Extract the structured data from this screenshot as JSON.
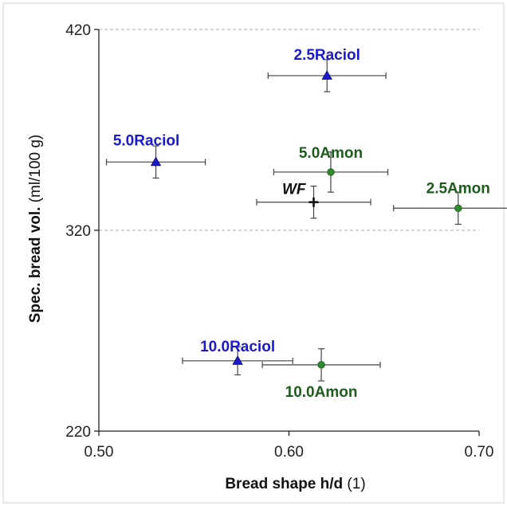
{
  "chart_data": {
    "type": "scatter",
    "xlabel": {
      "bold": "Bread shape h/d",
      "normal": " (1)"
    },
    "ylabel": {
      "bold": "Spec. bread vol.",
      "normal": " (ml/100 g)"
    },
    "xlim": [
      0.5,
      0.7
    ],
    "ylim": [
      220,
      420
    ],
    "x_ticks": [
      "0.50",
      "0.60",
      "0.70"
    ],
    "y_ticks": [
      "220",
      "320",
      "420"
    ],
    "gridlines_y": [
      320,
      420
    ],
    "colors": {
      "raciol": "#1a1acc",
      "amon": "#1e5c1e",
      "wf": "#111111",
      "error_bar": "#444444"
    },
    "points": [
      {
        "label": "2.5Raciol",
        "x": 0.62,
        "y": 397,
        "xerr": 0.031,
        "yerr": 8,
        "marker": "triangle",
        "color": "#1a1acc"
      },
      {
        "label": "5.0Raciol",
        "x": 0.53,
        "y": 354,
        "xerr": 0.026,
        "yerr": 8,
        "marker": "triangle",
        "color": "#1a1acc"
      },
      {
        "label": "5.0Amon",
        "x": 0.622,
        "y": 349,
        "xerr": 0.03,
        "yerr": 10,
        "marker": "circle",
        "color": "#1e5c1e"
      },
      {
        "label": "WF",
        "x": 0.613,
        "y": 334,
        "xerr": 0.03,
        "yerr": 8,
        "marker": "plus",
        "color": "#111111"
      },
      {
        "label": "2.5Amon",
        "x": 0.689,
        "y": 331,
        "xerr": 0.034,
        "yerr": 8,
        "marker": "circle",
        "color": "#1e5c1e"
      },
      {
        "label": "10.0Raciol",
        "x": 0.573,
        "y": 255,
        "xerr": 0.029,
        "yerr": 7,
        "marker": "triangle",
        "color": "#1a1acc"
      },
      {
        "label": "10.0Amon",
        "x": 0.617,
        "y": 253,
        "xerr": 0.031,
        "yerr": 8,
        "marker": "circle",
        "color": "#1e5c1e"
      }
    ]
  }
}
